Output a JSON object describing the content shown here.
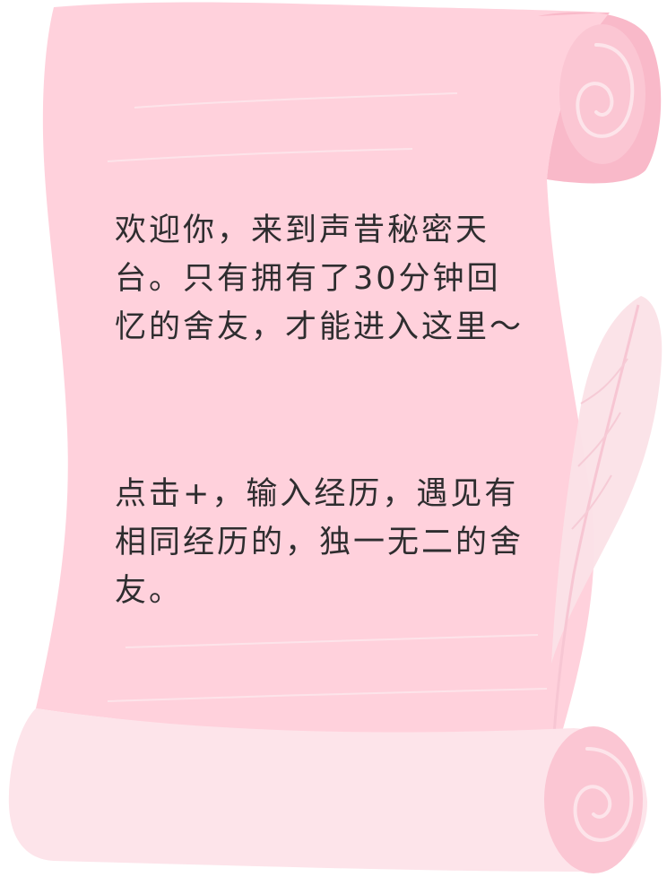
{
  "scroll": {
    "intro_text": "欢迎你，来到声昔秘密天台。只有拥有了30分钟回忆的舍友，才能进入这里～",
    "hint_text": "点击+，输入经历，遇见有相同经历的，独一无二的舍友。"
  },
  "colors": {
    "paper": "#ffd1dc",
    "roll": "#f9b9c9",
    "roll_light": "#fde4ea",
    "feather": "#fbe1e7",
    "text": "#2e2d2f"
  },
  "icons": {
    "quill": "quill-icon",
    "scroll": "scroll-icon"
  }
}
